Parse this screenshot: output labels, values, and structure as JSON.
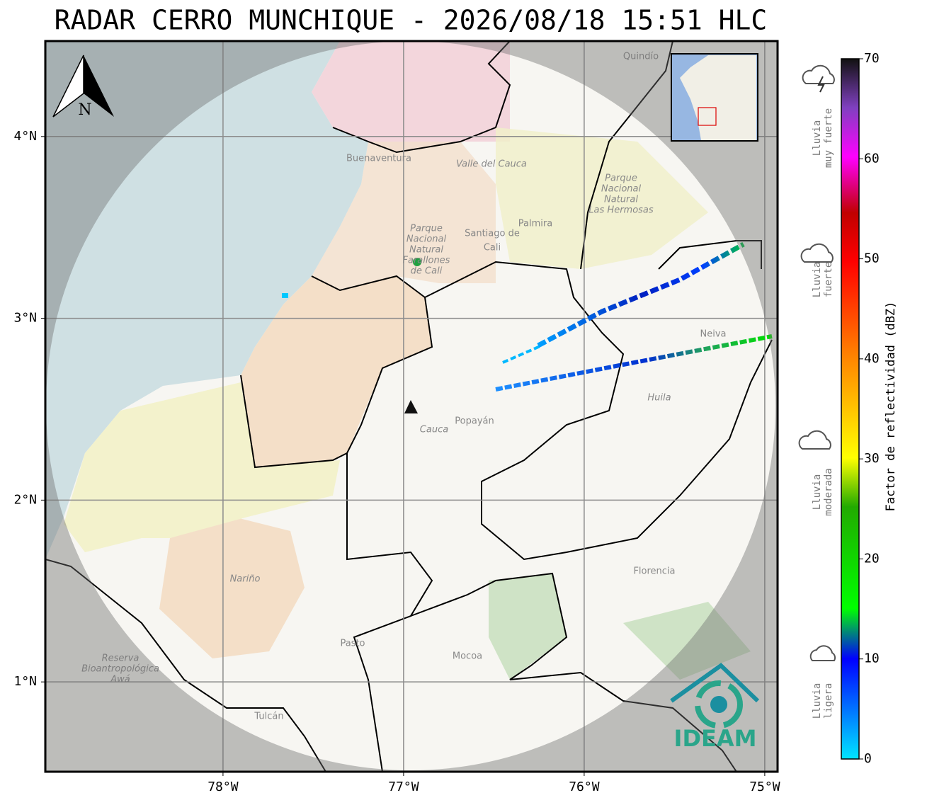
{
  "title": "RADAR CERRO MUNCHIQUE - 2026/08/18 15:51 HLC",
  "map": {
    "xlim": [
      -78.984,
      -74.929
    ],
    "ylim": [
      0.506,
      4.525
    ],
    "xticks": [
      {
        "value": -78,
        "label": "78°W"
      },
      {
        "value": -77,
        "label": "77°W"
      },
      {
        "value": -76,
        "label": "76°W"
      },
      {
        "value": -75,
        "label": "75°W"
      }
    ],
    "yticks": [
      {
        "value": 1,
        "label": "1°N"
      },
      {
        "value": 2,
        "label": "2°N"
      },
      {
        "value": 3,
        "label": "3°N"
      },
      {
        "value": 4,
        "label": "4°N"
      }
    ],
    "north": "N",
    "logo": "IDEAM",
    "places": [
      {
        "lines": [
          "Buenaventura"
        ]
      },
      {
        "lines": [
          "Valle del Cauca"
        ]
      },
      {
        "lines": [
          "Santiago de",
          "Cali"
        ]
      },
      {
        "lines": [
          "Palmira"
        ]
      },
      {
        "lines": [
          "Parque",
          "Nacional",
          "Natural",
          "Las Hermosas"
        ]
      },
      {
        "lines": [
          "Parque",
          "Nacional",
          "Natural",
          "Farallones",
          "de Cali"
        ]
      },
      {
        "lines": [
          "Cauca"
        ]
      },
      {
        "lines": [
          "Popayán"
        ]
      },
      {
        "lines": [
          "Neiva"
        ]
      },
      {
        "lines": [
          "Huila"
        ]
      },
      {
        "lines": [
          "Nariño"
        ]
      },
      {
        "lines": [
          "Pasto"
        ]
      },
      {
        "lines": [
          "Mocoa"
        ]
      },
      {
        "lines": [
          "Florencia"
        ]
      },
      {
        "lines": [
          "Reserva",
          "Bioantropológica",
          "Awá"
        ]
      },
      {
        "lines": [
          "Tulcán"
        ]
      },
      {
        "lines": [
          "Quindío"
        ]
      }
    ]
  },
  "colorbar": {
    "label": "Factor de reflectividad (dBZ)",
    "lim": [
      0,
      70
    ],
    "ticks": [
      0,
      10,
      20,
      30,
      40,
      50,
      60,
      70
    ],
    "categories": [
      {
        "lines": [
          "Lluvia",
          "muy fuerte"
        ]
      },
      {
        "lines": [
          "Lluvia",
          "fuerte"
        ]
      },
      {
        "lines": [
          "Lluvia",
          "moderada"
        ]
      },
      {
        "lines": [
          "Lluvia",
          "ligera"
        ]
      }
    ]
  }
}
